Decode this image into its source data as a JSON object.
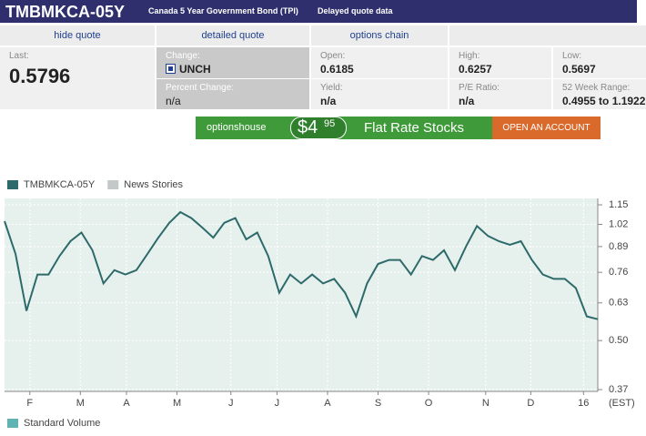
{
  "header": {
    "symbol": "TMBMKCA-05Y",
    "name": "Canada 5 Year Government Bond (TPI)",
    "note": "Delayed quote data"
  },
  "tabs": [
    "hide quote",
    "detailed quote",
    "options chain"
  ],
  "quote": {
    "last": {
      "label": "Last:",
      "value": "0.5796"
    },
    "change": {
      "label": "Change:",
      "value": "UNCH"
    },
    "percent_change": {
      "label": "Percent Change:",
      "value": "n/a"
    },
    "open": {
      "label": "Open:",
      "value": "0.6185"
    },
    "yield": {
      "label": "Yield:",
      "value": "n/a"
    },
    "high": {
      "label": "High:",
      "value": "0.6257"
    },
    "pe_ratio": {
      "label": "P/E Ratio:",
      "value": "n/a"
    },
    "low": {
      "label": "Low:",
      "value": "0.5697"
    },
    "week52_range": {
      "label": "52 Week Range:",
      "value": "0.4955 to 1.1922"
    }
  },
  "ad": {
    "brand": "optionshouse",
    "price_dollars": "$4",
    "price_cents": "95",
    "headline": "Flat Rate Stocks",
    "button": "OPEN AN ACCOUNT"
  },
  "chart_data": {
    "type": "line",
    "log_scale": true,
    "grid": true,
    "series": [
      {
        "name": "TMBMKCA-05Y",
        "color": "#2e6a6a",
        "values": [
          1.04,
          0.85,
          0.6,
          0.75,
          0.75,
          0.84,
          0.92,
          0.97,
          0.87,
          0.71,
          0.77,
          0.75,
          0.77,
          0.85,
          0.94,
          1.03,
          1.1,
          1.06,
          1.0,
          0.94,
          1.03,
          1.06,
          0.93,
          0.97,
          0.84,
          0.67,
          0.75,
          0.71,
          0.75,
          0.71,
          0.73,
          0.67,
          0.58,
          0.71,
          0.8,
          0.82,
          0.82,
          0.75,
          0.84,
          0.82,
          0.87,
          0.77,
          0.89,
          1.01,
          0.95,
          0.92,
          0.9,
          0.92,
          0.82,
          0.75,
          0.73,
          0.73,
          0.69,
          0.58,
          0.57
        ]
      }
    ],
    "overlays": [
      {
        "name": "News Stories",
        "color": "#c3c9c9"
      }
    ],
    "volume_legend": {
      "name": "Standard Volume",
      "color": "#5fb3b3"
    },
    "timezone": "(EST)",
    "xlim": [
      0,
      54
    ],
    "xticks": [
      {
        "value": 2.3,
        "label": "F"
      },
      {
        "value": 6.9,
        "label": "M"
      },
      {
        "value": 11.1,
        "label": "A"
      },
      {
        "value": 15.7,
        "label": "M"
      },
      {
        "value": 20.6,
        "label": "J"
      },
      {
        "value": 24.8,
        "label": "J"
      },
      {
        "value": 29.4,
        "label": "A"
      },
      {
        "value": 34,
        "label": "S"
      },
      {
        "value": 38.6,
        "label": "O"
      },
      {
        "value": 43.8,
        "label": "N"
      },
      {
        "value": 47.9,
        "label": "D"
      },
      {
        "value": 52.7,
        "label": "16"
      }
    ],
    "ylim": [
      0.366,
      1.196
    ],
    "yticks": [
      1.15,
      1.02,
      0.89,
      0.76,
      0.63,
      {
        "value": 0.5,
        "label": "0.50"
      },
      0.37
    ]
  }
}
